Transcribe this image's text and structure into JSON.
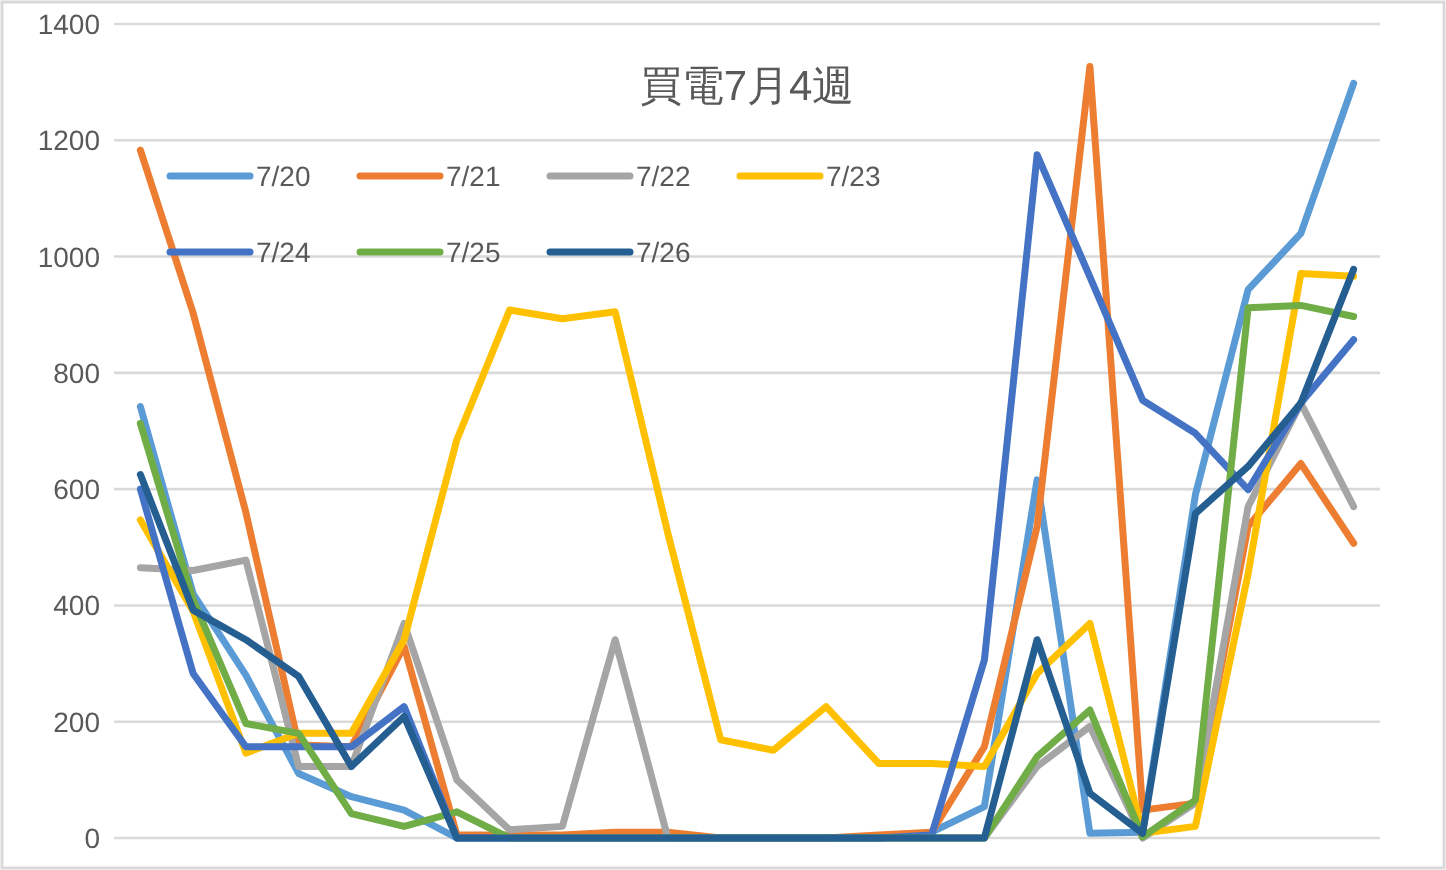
{
  "chart_data": {
    "type": "line",
    "title": "買電7月4週",
    "categories": [
      null,
      null,
      null,
      null,
      null,
      null,
      null,
      null,
      null,
      null,
      null,
      null,
      null,
      null,
      null,
      null,
      null,
      null,
      null,
      null,
      null,
      null,
      null,
      null
    ],
    "series": [
      {
        "name": "7/20",
        "color": "#5b9bd5",
        "values": [
          742,
          420,
          280,
          111,
          71,
          48,
          0,
          0,
          0,
          0,
          0,
          0,
          0,
          0,
          0,
          10,
          54,
          616,
          8,
          10,
          590,
          943,
          1040,
          1298
        ]
      },
      {
        "name": "7/21",
        "color": "#ed7d31",
        "values": [
          1183,
          903,
          560,
          160,
          157,
          330,
          5,
          5,
          5,
          10,
          10,
          0,
          0,
          0,
          5,
          10,
          157,
          536,
          1327,
          48,
          60,
          536,
          644,
          507
        ]
      },
      {
        "name": "7/22",
        "color": "#a5a5a5",
        "values": [
          465,
          460,
          478,
          123,
          123,
          369,
          100,
          14,
          20,
          341,
          0,
          0,
          0,
          0,
          0,
          0,
          0,
          123,
          192,
          0,
          60,
          570,
          748,
          570
        ]
      },
      {
        "name": "7/23",
        "color": "#ffc000",
        "values": [
          547,
          390,
          146,
          180,
          180,
          341,
          685,
          908,
          893,
          905,
          524,
          169,
          151,
          226,
          128,
          128,
          123,
          283,
          369,
          8,
          20,
          455,
          971,
          966
        ]
      },
      {
        "name": "7/24",
        "color": "#4472c4",
        "values": [
          600,
          283,
          157,
          157,
          157,
          226,
          0,
          0,
          0,
          0,
          0,
          0,
          0,
          0,
          0,
          5,
          306,
          1175,
          965,
          753,
          696,
          599,
          748,
          857
        ]
      },
      {
        "name": "7/25",
        "color": "#70ad47",
        "values": [
          713,
          410,
          197,
          180,
          42,
          20,
          45,
          0,
          0,
          0,
          0,
          0,
          0,
          0,
          0,
          0,
          0,
          140,
          220,
          2,
          65,
          912,
          916,
          897
        ]
      },
      {
        "name": "7/26",
        "color": "#255e91",
        "values": [
          625,
          392,
          341,
          278,
          123,
          209,
          0,
          0,
          0,
          0,
          0,
          0,
          0,
          0,
          0,
          0,
          0,
          341,
          77,
          8,
          558,
          639,
          748,
          978
        ]
      }
    ],
    "ylim": [
      0,
      1400
    ],
    "yticks": [
      0,
      200,
      400,
      600,
      800,
      1000,
      1200,
      1400
    ],
    "grid": "y",
    "legend": "top left",
    "tick_labels": "y"
  }
}
